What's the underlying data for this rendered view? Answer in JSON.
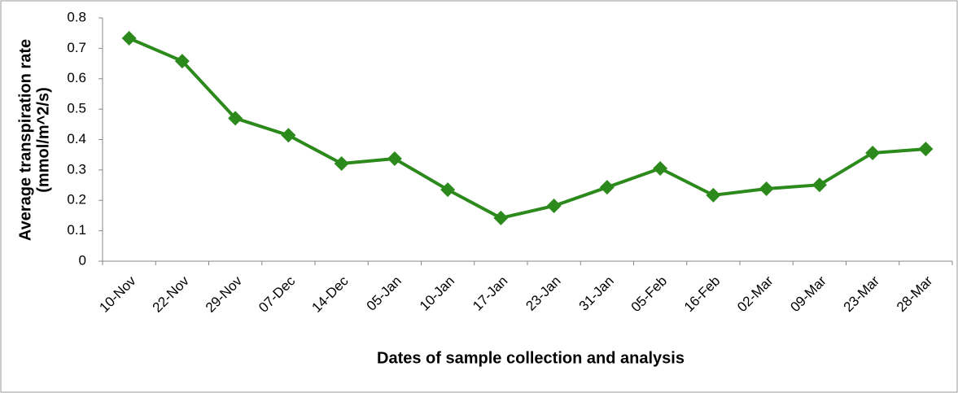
{
  "chart_data": {
    "type": "line",
    "x_label": "Dates of sample collection and analysis",
    "y_label": [
      "Average transpiration rate",
      "(mmol/m^2/s)"
    ],
    "categories": [
      "10-Nov",
      "22-Nov",
      "29-Nov",
      "07-Dec",
      "14-Dec",
      "05-Jan",
      "10-Jan",
      "17-Jan",
      "23-Jan",
      "31-Jan",
      "05-Feb",
      "16-Feb",
      "02-Mar",
      "09-Mar",
      "23-Mar",
      "28-Mar"
    ],
    "series": [
      {
        "color": "#2b8a1b",
        "values": [
          0.733,
          0.658,
          0.47,
          0.414,
          0.321,
          0.337,
          0.235,
          0.142,
          0.182,
          0.243,
          0.305,
          0.217,
          0.238,
          0.251,
          0.356,
          0.369
        ]
      }
    ],
    "ylim": [
      0,
      0.8
    ],
    "yticks": [
      0,
      0.1,
      0.2,
      0.3,
      0.4,
      0.5,
      0.6,
      0.7,
      0.8
    ],
    "grid": false
  }
}
